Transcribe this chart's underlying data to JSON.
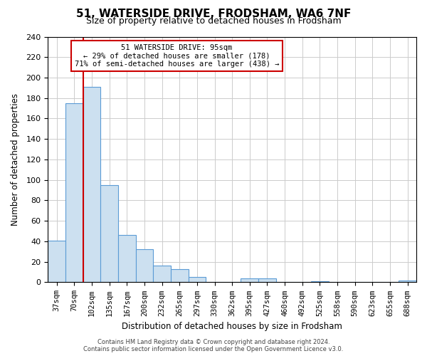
{
  "title": "51, WATERSIDE DRIVE, FRODSHAM, WA6 7NF",
  "subtitle": "Size of property relative to detached houses in Frodsham",
  "xlabel": "Distribution of detached houses by size in Frodsham",
  "ylabel": "Number of detached properties",
  "bar_labels": [
    "37sqm",
    "70sqm",
    "102sqm",
    "135sqm",
    "167sqm",
    "200sqm",
    "232sqm",
    "265sqm",
    "297sqm",
    "330sqm",
    "362sqm",
    "395sqm",
    "427sqm",
    "460sqm",
    "492sqm",
    "525sqm",
    "558sqm",
    "590sqm",
    "623sqm",
    "655sqm",
    "688sqm"
  ],
  "bar_values": [
    41,
    175,
    191,
    95,
    46,
    32,
    16,
    13,
    5,
    0,
    0,
    4,
    4,
    0,
    0,
    1,
    0,
    0,
    0,
    0,
    2
  ],
  "bar_color": "#cce0f0",
  "bar_edge_color": "#5b9bd5",
  "property_line_idx": 2,
  "property_line_color": "#cc0000",
  "ylim": [
    0,
    240
  ],
  "yticks": [
    0,
    20,
    40,
    60,
    80,
    100,
    120,
    140,
    160,
    180,
    200,
    220,
    240
  ],
  "annotation_title": "51 WATERSIDE DRIVE: 95sqm",
  "annotation_line1": "← 29% of detached houses are smaller (178)",
  "annotation_line2": "71% of semi-detached houses are larger (438) →",
  "annotation_box_color": "#ffffff",
  "annotation_box_edge": "#cc0000",
  "footer_line1": "Contains HM Land Registry data © Crown copyright and database right 2024.",
  "footer_line2": "Contains public sector information licensed under the Open Government Licence v3.0.",
  "grid_color": "#cccccc",
  "background_color": "#ffffff"
}
